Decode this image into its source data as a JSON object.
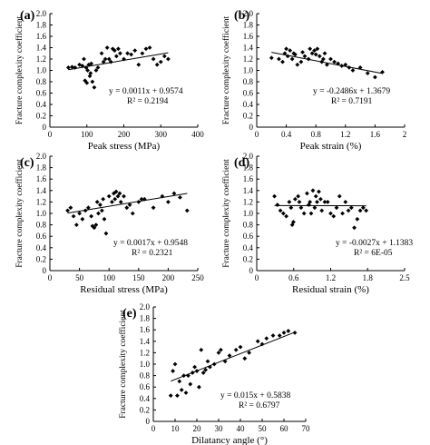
{
  "chart_data": [
    {
      "type": "scatter",
      "panel_label": "(a)",
      "xlabel": "Peak stress (MPa)",
      "ylabel": "Fracture complexity  coefficient",
      "xlim": [
        0,
        400
      ],
      "ylim": [
        0,
        2.0
      ],
      "xticks": [
        "0",
        "100",
        "200",
        "300",
        "400"
      ],
      "yticks": [
        "0",
        "0.2",
        "0.4",
        "0.6",
        "0.8",
        "1.0",
        "1.2",
        "1.4",
        "1.6",
        "1.8",
        "2.0"
      ],
      "trendline": {
        "slope": 0.0011,
        "intercept": 0.9574
      },
      "equation": "y = 0.0011x + 0.9574",
      "r2": "R² = 0.2194",
      "points": [
        [
          50,
          1.05
        ],
        [
          60,
          1.06
        ],
        [
          68,
          1.05
        ],
        [
          80,
          1.1
        ],
        [
          88,
          1.08
        ],
        [
          92,
          1.2
        ],
        [
          95,
          0.82
        ],
        [
          98,
          1.05
        ],
        [
          100,
          0.78
        ],
        [
          102,
          1.0
        ],
        [
          105,
          1.1
        ],
        [
          108,
          0.9
        ],
        [
          110,
          0.95
        ],
        [
          112,
          1.12
        ],
        [
          115,
          0.8
        ],
        [
          120,
          0.7
        ],
        [
          125,
          1.0
        ],
        [
          130,
          1.05
        ],
        [
          140,
          1.3
        ],
        [
          145,
          1.15
        ],
        [
          150,
          1.2
        ],
        [
          155,
          1.4
        ],
        [
          160,
          1.2
        ],
        [
          165,
          1.15
        ],
        [
          170,
          1.38
        ],
        [
          175,
          1.35
        ],
        [
          180,
          1.25
        ],
        [
          185,
          1.38
        ],
        [
          190,
          1.3
        ],
        [
          200,
          1.2
        ],
        [
          210,
          1.3
        ],
        [
          220,
          1.28
        ],
        [
          230,
          1.35
        ],
        [
          240,
          1.1
        ],
        [
          250,
          1.3
        ],
        [
          260,
          1.38
        ],
        [
          270,
          1.4
        ],
        [
          280,
          1.2
        ],
        [
          290,
          1.1
        ],
        [
          300,
          1.15
        ],
        [
          310,
          1.25
        ],
        [
          320,
          1.2
        ]
      ]
    },
    {
      "type": "scatter",
      "panel_label": "(b)",
      "xlabel": "Peak strain (%)",
      "ylabel": "Fracture complexity  coefficient",
      "xlim": [
        0,
        2
      ],
      "ylim": [
        0,
        2.0
      ],
      "xticks": [
        "0",
        "0.4",
        "0.8",
        "1.2",
        "1.6",
        "2"
      ],
      "yticks": [
        "0",
        "0.2",
        "0.4",
        "0.6",
        "0.8",
        "1.0",
        "1.2",
        "1.4",
        "1.6",
        "1.8",
        "2.0"
      ],
      "trendline": {
        "slope": -0.2486,
        "intercept": 1.3679
      },
      "equation": "y = -0.2486x + 1.3679",
      "r2": "R² = 0.7191",
      "points": [
        [
          0.2,
          1.22
        ],
        [
          0.3,
          1.2
        ],
        [
          0.35,
          1.15
        ],
        [
          0.38,
          1.3
        ],
        [
          0.4,
          1.38
        ],
        [
          0.42,
          1.25
        ],
        [
          0.45,
          1.35
        ],
        [
          0.48,
          1.2
        ],
        [
          0.5,
          1.3
        ],
        [
          0.52,
          1.28
        ],
        [
          0.55,
          1.1
        ],
        [
          0.6,
          1.15
        ],
        [
          0.62,
          1.32
        ],
        [
          0.65,
          1.25
        ],
        [
          0.7,
          1.2
        ],
        [
          0.72,
          1.38
        ],
        [
          0.75,
          1.3
        ],
        [
          0.78,
          1.35
        ],
        [
          0.8,
          1.28
        ],
        [
          0.82,
          1.38
        ],
        [
          0.85,
          1.25
        ],
        [
          0.88,
          1.15
        ],
        [
          0.9,
          1.2
        ],
        [
          0.92,
          1.3
        ],
        [
          0.95,
          1.1
        ],
        [
          1.0,
          1.2
        ],
        [
          1.05,
          1.15
        ],
        [
          1.1,
          1.12
        ],
        [
          1.15,
          1.08
        ],
        [
          1.2,
          1.1
        ],
        [
          1.25,
          1.05
        ],
        [
          1.3,
          1.0
        ],
        [
          1.4,
          1.05
        ],
        [
          1.5,
          0.95
        ],
        [
          1.6,
          0.88
        ],
        [
          1.7,
          0.97
        ]
      ]
    },
    {
      "type": "scatter",
      "panel_label": "(c)",
      "xlabel": "Residual stress (MPa)",
      "ylabel": "Fracture complexity  coefficient",
      "xlim": [
        0,
        250
      ],
      "ylim": [
        0,
        2.0
      ],
      "xticks": [
        "0",
        "50",
        "100",
        "150",
        "200",
        "250"
      ],
      "yticks": [
        "0",
        "0.2",
        "0.4",
        "0.6",
        "0.8",
        "1.0",
        "1.2",
        "1.4",
        "1.6",
        "1.8",
        "2.0"
      ],
      "trendline": {
        "slope": 0.0017,
        "intercept": 0.9548
      },
      "equation": "y = 0.0017x + 0.9548",
      "r2": "R² = 0.2321",
      "points": [
        [
          30,
          1.05
        ],
        [
          35,
          1.1
        ],
        [
          40,
          0.95
        ],
        [
          45,
          0.8
        ],
        [
          50,
          1.0
        ],
        [
          55,
          0.9
        ],
        [
          60,
          1.05
        ],
        [
          65,
          1.1
        ],
        [
          70,
          0.95
        ],
        [
          72,
          0.78
        ],
        [
          75,
          0.75
        ],
        [
          78,
          0.8
        ],
        [
          80,
          1.2
        ],
        [
          82,
          1.0
        ],
        [
          85,
          1.15
        ],
        [
          88,
          1.05
        ],
        [
          90,
          1.25
        ],
        [
          92,
          0.9
        ],
        [
          95,
          0.65
        ],
        [
          100,
          1.3
        ],
        [
          105,
          1.2
        ],
        [
          108,
          1.35
        ],
        [
          110,
          1.25
        ],
        [
          112,
          1.38
        ],
        [
          115,
          1.3
        ],
        [
          118,
          1.35
        ],
        [
          120,
          1.2
        ],
        [
          125,
          1.3
        ],
        [
          130,
          1.1
        ],
        [
          135,
          1.15
        ],
        [
          140,
          1.0
        ],
        [
          150,
          1.2
        ],
        [
          155,
          1.25
        ],
        [
          160,
          1.25
        ],
        [
          175,
          1.1
        ],
        [
          190,
          1.3
        ],
        [
          200,
          1.2
        ],
        [
          210,
          1.35
        ],
        [
          220,
          1.28
        ],
        [
          232,
          1.05
        ]
      ]
    },
    {
      "type": "scatter",
      "panel_label": "(d)",
      "xlabel": "Residual strain (%)",
      "ylabel": "Fracture complexity  coefficient",
      "xlim": [
        0,
        2.5
      ],
      "ylim": [
        0,
        2.0
      ],
      "xticks": [
        "0",
        "0.6",
        "1.2",
        "1.8",
        "2.5"
      ],
      "yticks": [
        "0",
        "0.2",
        "0.4",
        "0.6",
        "0.8",
        "1.0",
        "1.2",
        "1.4",
        "1.6",
        "1.8",
        "2.0"
      ],
      "trendline": {
        "slope": -0.0027,
        "intercept": 1.1383
      },
      "equation": "y = -0.0027x + 1.1383",
      "r2": "R² = 6E-05",
      "points": [
        [
          0.3,
          1.3
        ],
        [
          0.35,
          1.15
        ],
        [
          0.4,
          1.05
        ],
        [
          0.45,
          1.0
        ],
        [
          0.5,
          0.95
        ],
        [
          0.55,
          1.2
        ],
        [
          0.58,
          1.1
        ],
        [
          0.6,
          0.8
        ],
        [
          0.62,
          0.85
        ],
        [
          0.65,
          1.25
        ],
        [
          0.7,
          1.3
        ],
        [
          0.72,
          1.2
        ],
        [
          0.75,
          1.1
        ],
        [
          0.8,
          1.0
        ],
        [
          0.85,
          1.35
        ],
        [
          0.88,
          1.15
        ],
        [
          0.9,
          1.2
        ],
        [
          0.92,
          1.0
        ],
        [
          0.95,
          1.4
        ],
        [
          0.98,
          1.1
        ],
        [
          1.0,
          1.3
        ],
        [
          1.02,
          1.2
        ],
        [
          1.05,
          1.38
        ],
        [
          1.08,
          1.25
        ],
        [
          1.1,
          1.05
        ],
        [
          1.15,
          1.2
        ],
        [
          1.2,
          1.2
        ],
        [
          1.25,
          1.0
        ],
        [
          1.3,
          0.95
        ],
        [
          1.35,
          1.1
        ],
        [
          1.4,
          1.3
        ],
        [
          1.45,
          1.0
        ],
        [
          1.5,
          1.2
        ],
        [
          1.55,
          1.05
        ],
        [
          1.6,
          1.1
        ],
        [
          1.65,
          0.75
        ],
        [
          1.7,
          0.9
        ],
        [
          1.75,
          1.05
        ],
        [
          1.8,
          1.1
        ],
        [
          1.85,
          1.05
        ]
      ]
    },
    {
      "type": "scatter",
      "panel_label": "(e)",
      "xlabel": "Dilatancy angle (°)",
      "ylabel": "Fracture complexity  coefficient",
      "xlim": [
        0,
        70
      ],
      "ylim": [
        0,
        2.0
      ],
      "xticks": [
        "0",
        "10",
        "20",
        "30",
        "40",
        "50",
        "60",
        "70"
      ],
      "yticks": [
        "0",
        "0.2",
        "0.4",
        "0.6",
        "0.8",
        "1.0",
        "1.2",
        "1.4",
        "1.6",
        "1.8",
        "2.0"
      ],
      "trendline": {
        "slope": 0.015,
        "intercept": 0.5838
      },
      "equation": "y = 0.015x + 0.5838",
      "r2": "R² = 0.6797",
      "points": [
        [
          8,
          0.45
        ],
        [
          9,
          0.88
        ],
        [
          10,
          1.0
        ],
        [
          11,
          0.45
        ],
        [
          12,
          0.7
        ],
        [
          13,
          0.55
        ],
        [
          14,
          0.8
        ],
        [
          15,
          0.5
        ],
        [
          16,
          0.8
        ],
        [
          17,
          0.65
        ],
        [
          18,
          0.85
        ],
        [
          19,
          0.95
        ],
        [
          20,
          0.88
        ],
        [
          21,
          0.6
        ],
        [
          22,
          1.25
        ],
        [
          23,
          0.85
        ],
        [
          24,
          0.9
        ],
        [
          25,
          1.05
        ],
        [
          26,
          0.95
        ],
        [
          28,
          1.0
        ],
        [
          30,
          1.2
        ],
        [
          31,
          1.25
        ],
        [
          33,
          1.05
        ],
        [
          35,
          1.15
        ],
        [
          38,
          1.25
        ],
        [
          40,
          1.3
        ],
        [
          42,
          1.1
        ],
        [
          44,
          1.2
        ],
        [
          48,
          1.4
        ],
        [
          50,
          1.35
        ],
        [
          52,
          1.45
        ],
        [
          55,
          1.5
        ],
        [
          58,
          1.5
        ],
        [
          60,
          1.55
        ],
        [
          62,
          1.58
        ],
        [
          65,
          1.55
        ]
      ]
    }
  ]
}
